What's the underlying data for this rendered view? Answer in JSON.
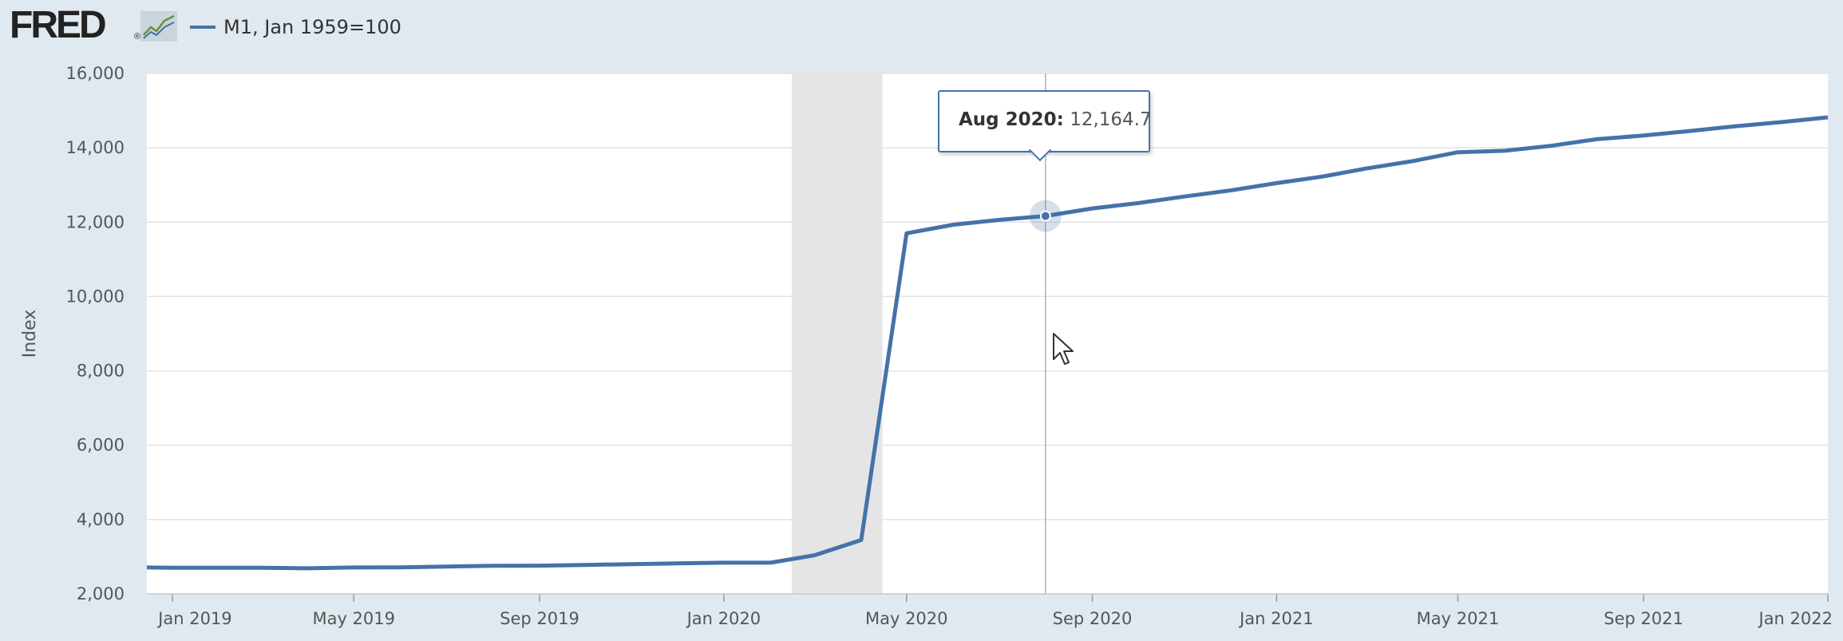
{
  "header": {
    "logo_text": "FRED",
    "logo_mark": "®",
    "logo_icon": "graph-icon",
    "legend_label": "M1, Jan 1959=100",
    "series_color": "#4572a7"
  },
  "tooltip": {
    "date": "Aug 2020",
    "separator": ":",
    "value": "12,164.7"
  },
  "chart_data": {
    "type": "line",
    "title": "",
    "xlabel": "",
    "ylabel": "Index",
    "ylim": [
      2000,
      16000
    ],
    "yticks": [
      2000,
      4000,
      6000,
      8000,
      10000,
      12000,
      14000,
      16000
    ],
    "ytick_labels": [
      "2,000",
      "4,000",
      "6,000",
      "8,000",
      "10,000",
      "12,000",
      "14,000",
      "16,000"
    ],
    "xlim": [
      "2018-12-15",
      "2022-01-01"
    ],
    "xticks": [
      "2019-01-01",
      "2019-05-01",
      "2019-09-01",
      "2020-01-01",
      "2020-05-01",
      "2020-09-01",
      "2021-01-01",
      "2021-05-01",
      "2021-09-01",
      "2022-01-01"
    ],
    "xtick_labels": [
      "Jan 2019",
      "May 2019",
      "Sep 2019",
      "Jan 2020",
      "May 2020",
      "Sep 2020",
      "Jan 2021",
      "May 2021",
      "Sep 2021",
      "Jan 2022"
    ],
    "grid": true,
    "legend": "top-left",
    "recession": {
      "start": "2020-02-15",
      "end": "2020-04-15",
      "color": "#e5e5e5"
    },
    "highlight": {
      "date": "2020-08-01",
      "value": 12164.7
    },
    "series": [
      {
        "name": "M1, Jan 1959=100",
        "color": "#4572a7",
        "points": [
          [
            "2018-12-01",
            2710
          ],
          [
            "2019-01-01",
            2705
          ],
          [
            "2019-02-01",
            2705
          ],
          [
            "2019-03-01",
            2705
          ],
          [
            "2019-04-01",
            2690
          ],
          [
            "2019-05-01",
            2710
          ],
          [
            "2019-06-01",
            2715
          ],
          [
            "2019-07-01",
            2735
          ],
          [
            "2019-08-01",
            2755
          ],
          [
            "2019-09-01",
            2760
          ],
          [
            "2019-10-01",
            2780
          ],
          [
            "2019-11-01",
            2800
          ],
          [
            "2019-12-01",
            2820
          ],
          [
            "2020-01-01",
            2840
          ],
          [
            "2020-02-01",
            2840
          ],
          [
            "2020-03-01",
            3040
          ],
          [
            "2020-04-01",
            3450
          ],
          [
            "2020-05-01",
            11700
          ],
          [
            "2020-06-01",
            11930
          ],
          [
            "2020-07-01",
            12060
          ],
          [
            "2020-08-01",
            12164.7
          ],
          [
            "2020-09-01",
            12370
          ],
          [
            "2020-10-01",
            12510
          ],
          [
            "2020-11-01",
            12690
          ],
          [
            "2020-12-01",
            12850
          ],
          [
            "2021-01-01",
            13050
          ],
          [
            "2021-02-01",
            13230
          ],
          [
            "2021-03-01",
            13440
          ],
          [
            "2021-04-01",
            13640
          ],
          [
            "2021-05-01",
            13880
          ],
          [
            "2021-06-01",
            13920
          ],
          [
            "2021-07-01",
            14050
          ],
          [
            "2021-08-01",
            14230
          ],
          [
            "2021-09-01",
            14330
          ],
          [
            "2021-10-01",
            14450
          ],
          [
            "2021-11-01",
            14580
          ],
          [
            "2021-12-01",
            14690
          ],
          [
            "2022-01-01",
            14820
          ]
        ]
      }
    ]
  }
}
